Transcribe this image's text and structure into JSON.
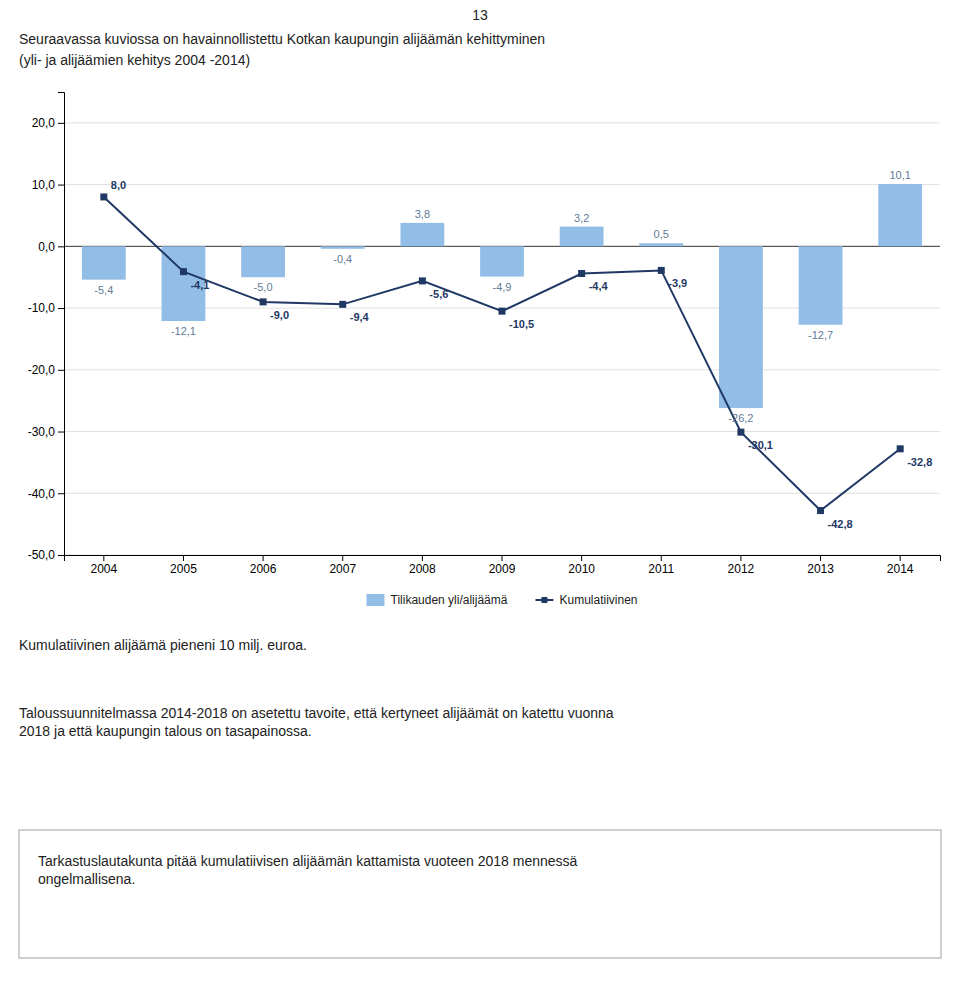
{
  "chart_data": {
    "type": "bar",
    "title": "Seuraavassa kuviossa on havainnollistettu Kotkan kaupungin alijäämän kehittyminen",
    "subtitle": "(yli- ja alijäämien kehitys 2004 -2014)",
    "annotations": [
      "13",
      "Kumulatiivinen alijäämä pieneni 10 milj. euroa.",
      "Taloussuunnitelmassa 2014-2018 on asetettu tavoite, että kertyneet alijäämät on katettu vuonna\n2018 ja että kaupungin talous on tasapainossa.",
      "Tarkastuslautakunta pitää kumulatiivisen alijäämän kattamista vuoteen 2018 mennessä\nongelmallisena."
    ],
    "categories": [
      "2004",
      "2005",
      "2006",
      "2007",
      "2008",
      "2009",
      "2010",
      "2011",
      "2012",
      "2013",
      "2014"
    ],
    "series": [
      {
        "name": "Tilikauden yli/alijäämä",
        "type": "bar",
        "color": "#92bde7",
        "values": [
          -5.4,
          -12.1,
          -5.0,
          -0.4,
          3.8,
          -4.9,
          3.2,
          0.5,
          -26.2,
          -12.7,
          10.1
        ],
        "value_labels": [
          "-5,4",
          "-12,1",
          "-5,0",
          "-0,4",
          "3,8",
          "-4,9",
          "3,2",
          "0,5",
          "-26,2",
          "-12,7",
          "10,1"
        ]
      },
      {
        "name": "Kumulatiivinen",
        "type": "line",
        "color": "#1f3864",
        "marker": "square",
        "values": [
          8.0,
          -4.1,
          -9.0,
          -9.4,
          -5.6,
          -10.5,
          -4.4,
          -3.9,
          -30.1,
          -42.8,
          -32.8
        ],
        "value_labels": [
          "8,0",
          "-4,1",
          "-9,0",
          "-9,4",
          "-5,6",
          "-10,5",
          "-4,4",
          "-3,9",
          "-30,1",
          "-42,8",
          "-32,8"
        ]
      }
    ],
    "ylim": [
      -50.0,
      25.0
    ],
    "yticks": [
      {
        "value": -50.0,
        "label": "-50,0"
      },
      {
        "value": -40.0,
        "label": "-40,0"
      },
      {
        "value": -30.0,
        "label": "-30,0"
      },
      {
        "value": -20.0,
        "label": "-20,0"
      },
      {
        "value": -10.0,
        "label": "-10,0"
      },
      {
        "value": 0.0,
        "label": "0,0"
      },
      {
        "value": 10.0,
        "label": "10,0"
      },
      {
        "value": 20.0,
        "label": "20,0"
      }
    ],
    "grid": true,
    "legend": "bottom",
    "data_labels": true
  }
}
